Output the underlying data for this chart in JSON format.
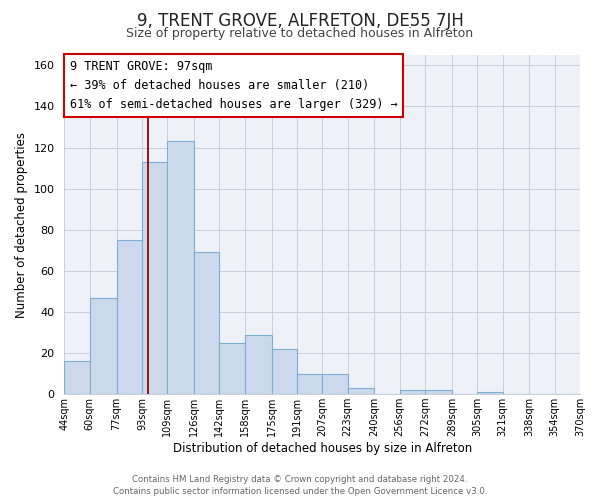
{
  "title": "9, TRENT GROVE, ALFRETON, DE55 7JH",
  "subtitle": "Size of property relative to detached houses in Alfreton",
  "xlabel": "Distribution of detached houses by size in Alfreton",
  "ylabel": "Number of detached properties",
  "bar_values": [
    16,
    47,
    75,
    113,
    123,
    69,
    25,
    29,
    22,
    10,
    10,
    3,
    0,
    2,
    2,
    0,
    1,
    0,
    0,
    0
  ],
  "bar_color": "#ccd9ec",
  "bar_edge_color": "#7bafd4",
  "bar_linewidth": 0.8,
  "property_line_x": 97,
  "property_line_color": "#990000",
  "ylim": [
    0,
    165
  ],
  "yticks": [
    0,
    20,
    40,
    60,
    80,
    100,
    120,
    140,
    160
  ],
  "annotation_title": "9 TRENT GROVE: 97sqm",
  "annotation_line1": "← 39% of detached houses are smaller (210)",
  "annotation_line2": "61% of semi-detached houses are larger (329) →",
  "annotation_box_color": "#ffffff",
  "annotation_box_edge": "#cc0000",
  "footer_line1": "Contains HM Land Registry data © Crown copyright and database right 2024.",
  "footer_line2": "Contains public sector information licensed under the Open Government Licence v3.0.",
  "bin_edges": [
    44,
    60,
    77,
    93,
    109,
    126,
    142,
    158,
    175,
    191,
    207,
    223,
    240,
    256,
    272,
    289,
    305,
    321,
    338,
    354,
    370
  ],
  "background_color": "#eef1f8",
  "grid_color": "#c8cdd8",
  "title_fontsize": 12,
  "subtitle_fontsize": 9
}
